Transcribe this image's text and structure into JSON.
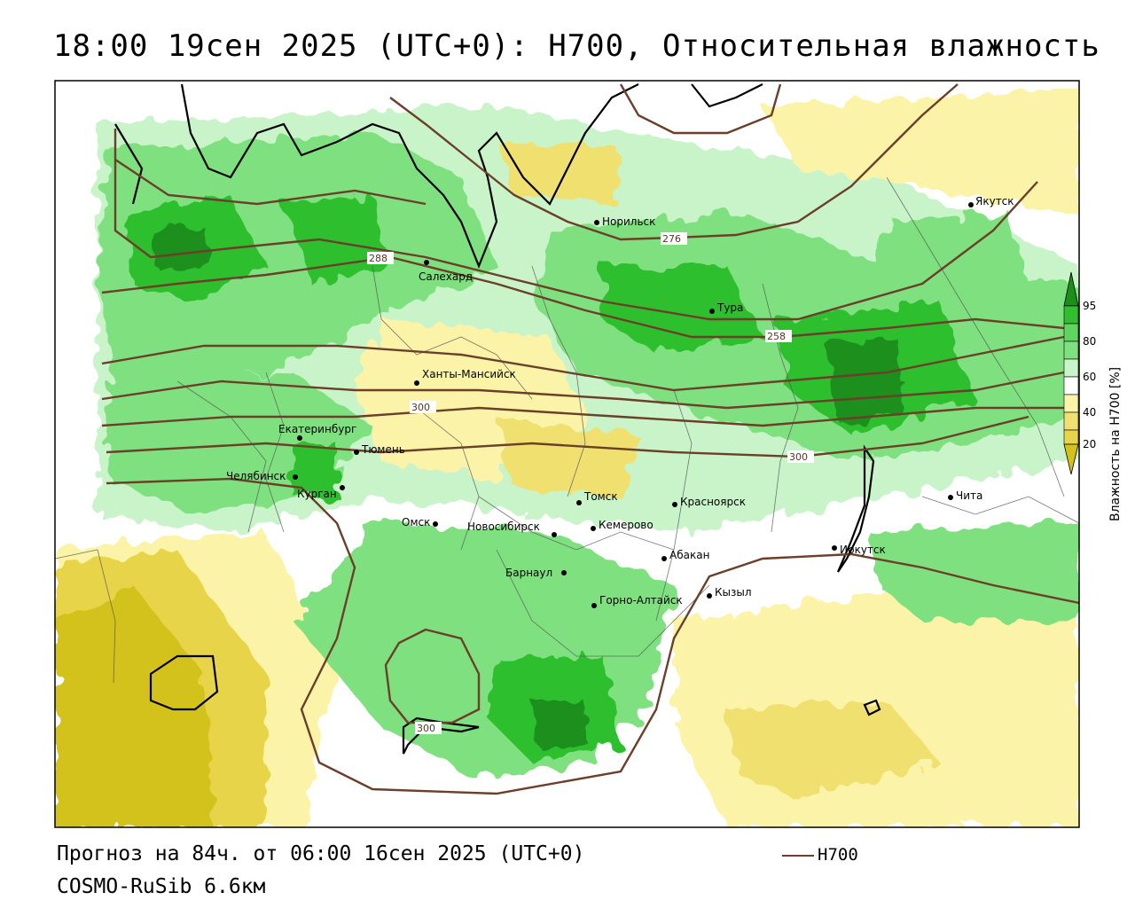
{
  "title": "18:00 19сен 2025 (UTC+0): H700, Относительная влажность",
  "footer": {
    "forecast": "Прогноз на 84ч. от 06:00 16сен 2025 (UTC+0)",
    "model": "COSMO-RuSib 6.6км"
  },
  "legend": {
    "contour_label": "H700",
    "contour_color": "#6b3f2a"
  },
  "colorbar": {
    "title": "Влажность на H700 [%]",
    "ticks": [
      "95",
      "80",
      "60",
      "40",
      "20"
    ],
    "colors": [
      "#1a8f1a",
      "#2fbf2f",
      "#7fe07f",
      "#c9f3c9",
      "#ffffff",
      "#fbf3a8",
      "#f0e070",
      "#d4c21a"
    ]
  },
  "contour_labels": [
    "276",
    "288",
    "258",
    "300",
    "300",
    "300"
  ],
  "cities": [
    {
      "name": "Норильск"
    },
    {
      "name": "Якутск"
    },
    {
      "name": "Салехард"
    },
    {
      "name": "Тура"
    },
    {
      "name": "Ханты-Мансийск"
    },
    {
      "name": "Екатеринбург"
    },
    {
      "name": "Тюмень"
    },
    {
      "name": "Челябинск"
    },
    {
      "name": "Курган"
    },
    {
      "name": "Омск"
    },
    {
      "name": "Новосибирск"
    },
    {
      "name": "Томск"
    },
    {
      "name": "Кемерово"
    },
    {
      "name": "Красноярск"
    },
    {
      "name": "Абакан"
    },
    {
      "name": "Барнаул"
    },
    {
      "name": "Горно-Алтайск"
    },
    {
      "name": "Кызыл"
    },
    {
      "name": "Иркутск"
    },
    {
      "name": "Чита"
    }
  ]
}
